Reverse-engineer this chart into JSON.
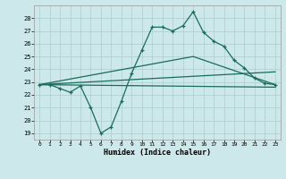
{
  "xlabel": "Humidex (Indice chaleur)",
  "background_color": "#cce8ea",
  "grid_color": "#aacccc",
  "line_color": "#1a6b5a",
  "xlim": [
    -0.5,
    23.5
  ],
  "ylim": [
    18.5,
    29.0
  ],
  "xticks": [
    0,
    1,
    2,
    3,
    4,
    5,
    6,
    7,
    8,
    9,
    10,
    11,
    12,
    13,
    14,
    15,
    16,
    17,
    18,
    19,
    20,
    21,
    22,
    23
  ],
  "yticks": [
    19,
    20,
    21,
    22,
    23,
    24,
    25,
    26,
    27,
    28
  ],
  "line1_x": [
    0,
    1,
    2,
    3,
    4,
    5,
    6,
    7,
    8,
    9,
    10,
    11,
    12,
    13,
    14,
    15,
    16,
    17,
    18,
    19,
    20,
    21,
    22,
    23
  ],
  "line1_y": [
    22.8,
    22.8,
    22.5,
    22.2,
    22.7,
    21.0,
    19.0,
    19.5,
    21.5,
    23.7,
    25.5,
    27.3,
    27.3,
    27.0,
    27.4,
    28.5,
    26.9,
    26.2,
    25.8,
    24.7,
    24.1,
    23.3,
    22.9,
    22.8
  ],
  "line2_x": [
    0,
    15,
    23
  ],
  "line2_y": [
    22.8,
    25.0,
    22.8
  ],
  "line3_x": [
    0,
    23
  ],
  "line3_y": [
    22.8,
    23.8
  ],
  "line4_x": [
    0,
    23
  ],
  "line4_y": [
    22.8,
    22.6
  ]
}
